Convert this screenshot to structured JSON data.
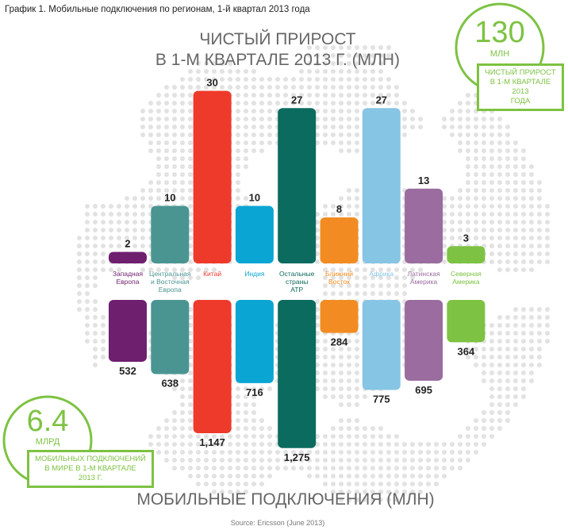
{
  "caption": "График 1. Мобильные подключения по регионам, 1-й квартал 2013 года",
  "title_line1": "ЧИСТЫЙ ПРИРОСТ",
  "title_line2": "В 1-М КВАРТАЛЕ 2013 Г. (МЛН)",
  "bottom_title": "МОБИЛЬНЫЕ ПОДКЛЮЧЕНИЯ (МЛН)",
  "source": "Source: Ericsson (June 2013)",
  "badge_top": {
    "number": "130",
    "unit": "МЛН",
    "text_lines": [
      "ЧИСТЫЙ ПРИРОСТ",
      "В 1-М КВАРТАЛЕ 2013",
      "ГОДА"
    ]
  },
  "badge_bottom": {
    "number": "6.4",
    "unit": "МЛРД",
    "text_lines": [
      "МОБИЛЬНЫХ ПОДКЛЮЧЕНИЙ",
      "В МИРЕ В 1-М КВАРТАЛЕ",
      "2013 Г."
    ]
  },
  "colors": {
    "accent_green": "#7dc242",
    "title_gray": "#666666",
    "map_dots": "#e2e2e2"
  },
  "chart_data": {
    "type": "bar",
    "categories": [
      [
        "Западная",
        "Европа"
      ],
      [
        "Центральная",
        "и Восточная",
        "Европа"
      ],
      [
        "Китай"
      ],
      [
        "Индия"
      ],
      [
        "Остальные",
        "страны",
        "АТР"
      ],
      [
        "Ближний",
        "Восток"
      ],
      [
        "Африка"
      ],
      [
        "Латинская",
        "Америка"
      ],
      [
        "Северная",
        "Америка"
      ]
    ],
    "category_colors": [
      "#6e1f6e",
      "#4a9591",
      "#ee3a2b",
      "#0ba5d4",
      "#0b6b5e",
      "#f28c22",
      "#87c5e4",
      "#9a6c9f",
      "#7dc242"
    ],
    "series": [
      {
        "values": [
          2,
          10,
          30,
          10,
          27,
          8,
          27,
          13,
          3
        ]
      },
      {
        "values": [
          532,
          638,
          1147,
          716,
          1275,
          284,
          775,
          695,
          364
        ]
      }
    ],
    "value_labels": [
      [
        "2",
        "10",
        "30",
        "10",
        "27",
        "8",
        "27",
        "13",
        "3"
      ],
      [
        "532",
        "638",
        "1,147",
        "716",
        "1,275",
        "284",
        "775",
        "695",
        "364"
      ]
    ]
  }
}
